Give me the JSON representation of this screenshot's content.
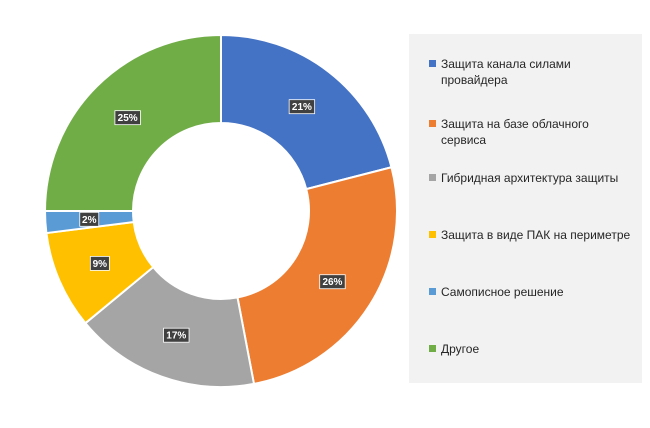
{
  "chart_data": {
    "type": "pie",
    "variant": "donut",
    "categories": [
      "Защита канала силами провайдера",
      "Защита на базе облачного сервиса",
      "Гибридная архитектура защиты",
      "Защита в виде ПАК на периметре",
      "Самописное решение",
      "Другое"
    ],
    "values": [
      21,
      26,
      17,
      9,
      2,
      25
    ],
    "labels": [
      "21%",
      "26%",
      "17%",
      "9%",
      "2%",
      "25%"
    ],
    "colors": [
      "#4472c4",
      "#ed7d31",
      "#a5a5a5",
      "#ffc000",
      "#5b9bd5",
      "#70ad47"
    ],
    "legend_position": "right",
    "title": ""
  }
}
